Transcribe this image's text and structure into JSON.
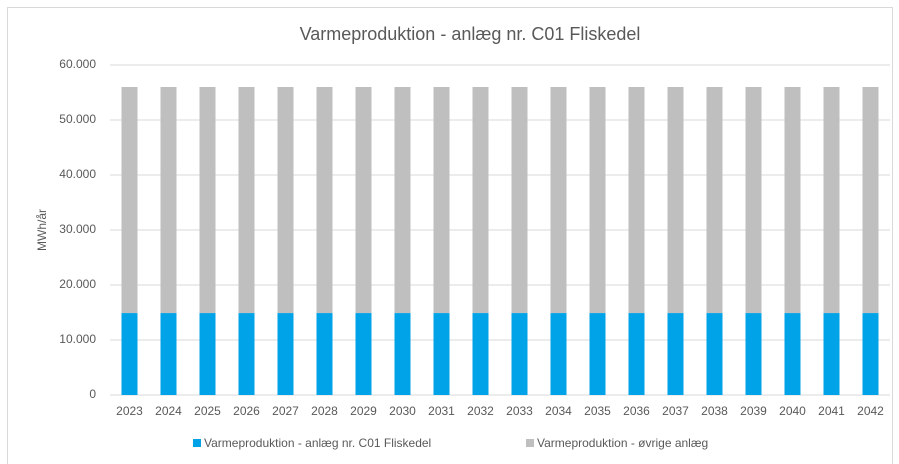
{
  "chart_data": {
    "type": "stacked_bar",
    "title": "Varmeproduktion - anlæg nr. C01 Fliskedel",
    "y_label": "MWh/år",
    "categories": [
      "2023",
      "2024",
      "2025",
      "2026",
      "2027",
      "2028",
      "2029",
      "2030",
      "2031",
      "2032",
      "2033",
      "2034",
      "2035",
      "2036",
      "2037",
      "2038",
      "2039",
      "2040",
      "2041",
      "2042"
    ],
    "series": [
      {
        "name": "Varmeproduktion - anlæg nr. C01 Fliskedel",
        "color": "#00a2e8",
        "values": [
          14900,
          14900,
          14900,
          14900,
          14900,
          14900,
          14900,
          14900,
          14900,
          14900,
          14900,
          14900,
          14900,
          14900,
          14900,
          14900,
          14900,
          14900,
          14900,
          14900
        ]
      },
      {
        "name": "Varmeproduktion - øvrige anlæg",
        "color": "#bfbfbf",
        "values": [
          41100,
          41100,
          41100,
          41100,
          41100,
          41100,
          41100,
          41100,
          41100,
          41100,
          41100,
          41100,
          41100,
          41100,
          41100,
          41100,
          41100,
          41100,
          41100,
          41100
        ]
      }
    ],
    "ylim": [
      0,
      60000
    ],
    "yticks": [
      0,
      {
        "value": 10000,
        "label": "10.000"
      },
      {
        "value": 20000,
        "label": "20.000"
      },
      {
        "value": 30000,
        "label": "30.000"
      },
      {
        "value": 40000,
        "label": "40.000"
      },
      {
        "value": 50000,
        "label": "50.000"
      },
      {
        "value": 60000,
        "label": "60.000"
      }
    ],
    "grid": true,
    "legend": "bottom"
  }
}
